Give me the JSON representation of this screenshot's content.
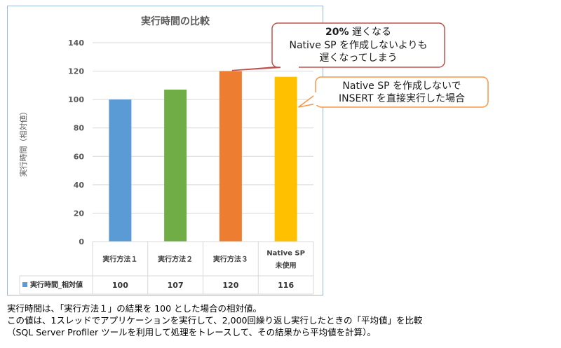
{
  "chart_data": {
    "type": "bar",
    "title": "実行時間の比較",
    "ylabel": "実行時間（相対値）",
    "ylim": [
      0,
      140
    ],
    "yticks": [
      0,
      20,
      40,
      60,
      80,
      100,
      120,
      140
    ],
    "grid": true,
    "categories": [
      [
        "実行方法１"
      ],
      [
        "実行方法２"
      ],
      [
        "実行方法３"
      ],
      [
        "Native SP",
        "未使用"
      ]
    ],
    "series": [
      {
        "name": "実行時間_相対値",
        "values": [
          100,
          107,
          120,
          116
        ],
        "colors": [
          "#5b9bd5",
          "#70ad47",
          "#ed7d31",
          "#ffc000"
        ]
      }
    ],
    "legend": "data-table",
    "annotations": [
      {
        "bold": "20%",
        "lines": [
          " 遅くなる",
          "Native SP を作成しないよりも",
          "遅くなってしまう"
        ],
        "target_index": 2,
        "border": "#c0504d"
      },
      {
        "lines": [
          "Native SP を作成しないで",
          "INSERT を直接実行した場合"
        ],
        "target_index": 3,
        "border": "#f79646"
      }
    ]
  },
  "notes": [
    "実行時間は、「実行方法１」の結果を 100 とした場合の相対値。",
    "この値は、1スレッドでアプリケーションを実行して、2,000回繰り返し実行したときの「平均値」を比較",
    "（SQL Server Profiler ツールを利用して処理をトレースして、その結果から平均値を計算）。"
  ]
}
